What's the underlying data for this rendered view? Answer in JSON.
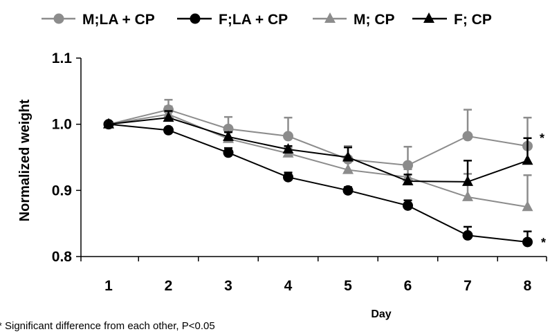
{
  "chart_data": {
    "type": "line",
    "xlabel": "Day",
    "ylabel": "Normalized weight",
    "x": [
      1,
      2,
      3,
      4,
      5,
      6,
      7,
      8
    ],
    "ylim": [
      0.8,
      1.1
    ],
    "yticks": [
      "0.8",
      "0.9",
      "1.0",
      "1.1"
    ],
    "xticks": [
      "1",
      "2",
      "3",
      "4",
      "5",
      "6",
      "7",
      "8"
    ],
    "grid": false,
    "legend_position": "top",
    "series": [
      {
        "name": "M;LA + CP",
        "color": "#8c8c8c",
        "marker": "circle",
        "values": [
          1.0,
          1.022,
          0.993,
          0.982,
          0.947,
          0.938,
          0.982,
          0.967
        ],
        "errors": [
          0,
          0.015,
          0.018,
          0.028,
          0.02,
          0.028,
          0.04,
          0.043
        ]
      },
      {
        "name": "F;LA + CP",
        "color": "#000000",
        "marker": "circle",
        "values": [
          1.0,
          0.991,
          0.957,
          0.92,
          0.9,
          0.877,
          0.832,
          0.822
        ],
        "errors": [
          0,
          0.004,
          0.007,
          0.007,
          0.005,
          0.008,
          0.013,
          0.016
        ]
      },
      {
        "name": "M; CP",
        "color": "#8c8c8c",
        "marker": "triangle",
        "values": [
          1.0,
          1.015,
          0.978,
          0.956,
          0.931,
          0.92,
          0.89,
          0.875
        ],
        "errors": [
          0,
          0.012,
          0.012,
          0.008,
          0.02,
          0.012,
          0.035,
          0.048
        ]
      },
      {
        "name": "F; CP",
        "color": "#000000",
        "marker": "triangle",
        "values": [
          1.0,
          1.01,
          0.981,
          0.962,
          0.95,
          0.914,
          0.913,
          0.945
        ],
        "errors": [
          0,
          0.01,
          0.007,
          0.005,
          0.015,
          0.01,
          0.032,
          0.034
        ]
      }
    ],
    "annotations": [
      "*",
      "*"
    ],
    "footnote": "* Significant difference from each other, P<0.05"
  }
}
